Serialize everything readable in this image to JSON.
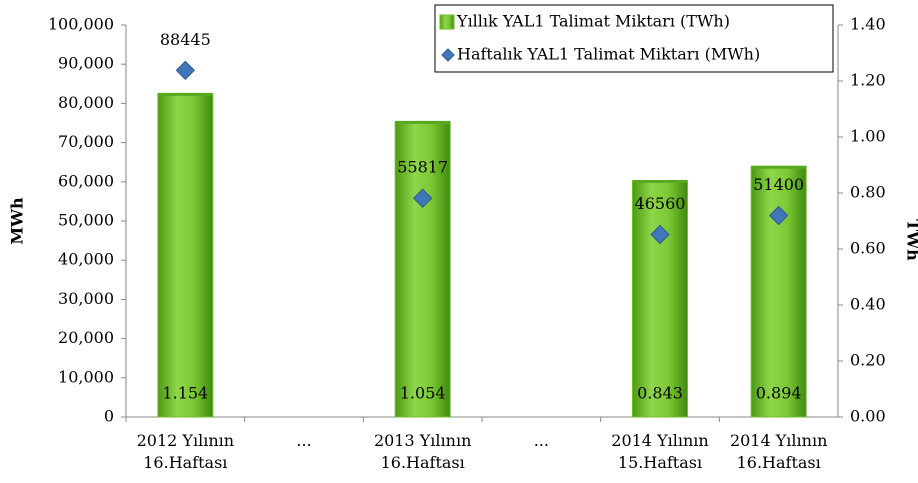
{
  "chart_data": {
    "type": "bar+scatter",
    "categories": [
      "2012 Yılının\n16.Haftası",
      "...",
      "2013 Yılının\n16.Haftası",
      "...",
      "2014 Yılının\n15.Haftası",
      "2014 Yılının\n16.Haftası"
    ],
    "series": [
      {
        "name": "Yıllık YAL1 Talimat Miktarı (TWh)",
        "type": "bar",
        "axis": "y2",
        "color": "#6fbf2a",
        "values": [
          1.154,
          null,
          1.054,
          null,
          0.843,
          0.894
        ]
      },
      {
        "name": "Haftalık YAL1 Talimat Miktarı (MWh)",
        "type": "scatter",
        "axis": "y",
        "color": "#3f77b8",
        "values": [
          88445,
          null,
          55817,
          null,
          46560,
          51400
        ]
      }
    ],
    "ylabel": "MWh",
    "y2label": "TWh",
    "ylim": [
      0,
      100000
    ],
    "yticks": [
      0,
      {
        "value": 10000,
        "label": "10,000"
      },
      {
        "value": 20000,
        "label": "20,000"
      },
      {
        "value": 30000,
        "label": "30,000"
      },
      {
        "value": 40000,
        "label": "40,000"
      },
      {
        "value": 50000,
        "label": "50,000"
      },
      {
        "value": 60000,
        "label": "60,000"
      },
      {
        "value": 70000,
        "label": "70,000"
      },
      {
        "value": 80000,
        "label": "80,000"
      },
      {
        "value": 90000,
        "label": "90,000"
      },
      {
        "value": 100000,
        "label": "100,000"
      }
    ],
    "y2lim": [
      0,
      1.4
    ],
    "y2ticks": [
      {
        "value": 0,
        "label": "0.00"
      },
      {
        "value": 0.2,
        "label": "0.20"
      },
      {
        "value": 0.4,
        "label": "0.40"
      },
      {
        "value": 0.6,
        "label": "0.60"
      },
      {
        "value": 0.8,
        "label": "0.80"
      },
      {
        "value": 1.0,
        "label": "1.00"
      },
      {
        "value": 1.2,
        "label": "1.20"
      },
      {
        "value": 1.4,
        "label": "1.40"
      }
    ],
    "legend": "upper right"
  }
}
